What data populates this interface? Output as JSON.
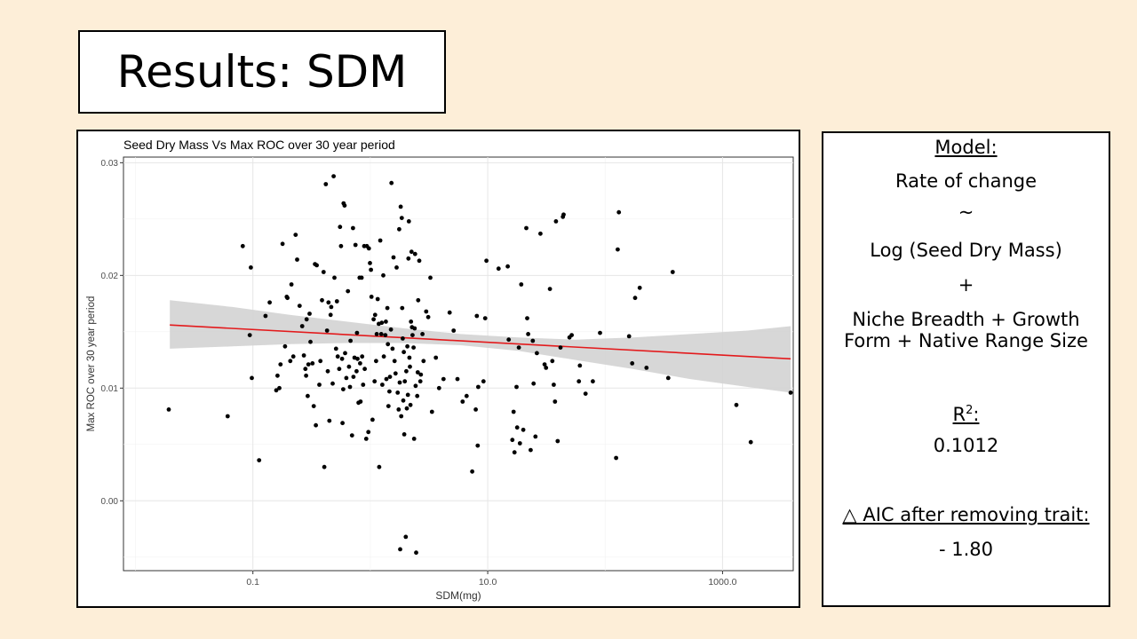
{
  "slide": {
    "title": "Results: SDM",
    "background": "#fdeed8"
  },
  "model_panel": {
    "heading": "Model:",
    "response": "Rate of change",
    "tilde": "~",
    "predictor": "Log (Seed Dry Mass)",
    "plus": "+",
    "covariates_line1": "Niche Breadth + Growth",
    "covariates_line2": "Form + Native Range Size",
    "r2_label": "R",
    "r2_sup": "2",
    "r2_colon": ":",
    "r2_value": "0.1012",
    "aic_label": "△ AIC after removing trait:",
    "aic_value": "- 1.80"
  },
  "chart_data": {
    "type": "scatter",
    "title": "Seed Dry Mass Vs Max ROC over 30 year period",
    "xlabel": "SDM(mg)",
    "ylabel": "Max ROC over 30 year period",
    "x_scale": "log10",
    "xlim": [
      0.0079,
      4000
    ],
    "ylim": [
      -0.0062,
      0.0305
    ],
    "x_ticks": [
      {
        "value": 0.1,
        "label": "0.1"
      },
      {
        "value": 10,
        "label": "10.0"
      },
      {
        "value": 1000,
        "label": "1000.0"
      }
    ],
    "y_ticks": [
      {
        "value": 0.0,
        "label": "0.00"
      },
      {
        "value": 0.01,
        "label": "0.01"
      },
      {
        "value": 0.02,
        "label": "0.02"
      },
      {
        "value": 0.03,
        "label": "0.03"
      }
    ],
    "grid": true,
    "point_color": "#000000",
    "fit_color": "#e31a1c",
    "band_color": "#d3d3d3",
    "fit": {
      "x": [
        0.0196,
        3800
      ],
      "y": [
        0.0156,
        0.0126
      ]
    },
    "band": {
      "x": [
        0.0196,
        0.067,
        0.206,
        0.63,
        1.94,
        5.9,
        18.3,
        56,
        172,
        530,
        1630,
        3800
      ],
      "lower": [
        0.0135,
        0.0137,
        0.0139,
        0.014,
        0.014,
        0.0138,
        0.0133,
        0.0125,
        0.0117,
        0.0108,
        0.0101,
        0.0096
      ],
      "upper": [
        0.0178,
        0.0172,
        0.0165,
        0.0159,
        0.0153,
        0.0148,
        0.0145,
        0.0143,
        0.0145,
        0.0148,
        0.0151,
        0.0155
      ]
    },
    "points": [
      [
        0.0192,
        0.0081
      ],
      [
        0.061,
        0.0075
      ],
      [
        0.082,
        0.0226
      ],
      [
        0.094,
        0.0147
      ],
      [
        0.096,
        0.0207
      ],
      [
        0.098,
        0.0109
      ],
      [
        0.113,
        0.0036
      ],
      [
        0.128,
        0.0164
      ],
      [
        0.139,
        0.0176
      ],
      [
        0.158,
        0.0098
      ],
      [
        0.162,
        0.0111
      ],
      [
        0.168,
        0.01
      ],
      [
        0.172,
        0.0121
      ],
      [
        0.179,
        0.0228
      ],
      [
        0.188,
        0.0137
      ],
      [
        0.194,
        0.0181
      ],
      [
        0.197,
        0.018
      ],
      [
        0.208,
        0.0124
      ],
      [
        0.213,
        0.0192
      ],
      [
        0.221,
        0.0128
      ],
      [
        0.231,
        0.0236
      ],
      [
        0.238,
        0.0214
      ],
      [
        0.25,
        0.0173
      ],
      [
        0.263,
        0.0155
      ],
      [
        0.272,
        0.0129
      ],
      [
        0.28,
        0.0117
      ],
      [
        0.284,
        0.0111
      ],
      [
        0.287,
        0.0161
      ],
      [
        0.293,
        0.0093
      ],
      [
        0.297,
        0.0121
      ],
      [
        0.304,
        0.0166
      ],
      [
        0.309,
        0.0141
      ],
      [
        0.322,
        0.0122
      ],
      [
        0.33,
        0.0084
      ],
      [
        0.338,
        0.021
      ],
      [
        0.344,
        0.0067
      ],
      [
        0.35,
        0.0209
      ],
      [
        0.368,
        0.0103
      ],
      [
        0.376,
        0.0124
      ],
      [
        0.388,
        0.0178
      ],
      [
        0.4,
        0.0203
      ],
      [
        0.406,
        0.003
      ],
      [
        0.418,
        0.0281
      ],
      [
        0.428,
        0.0151
      ],
      [
        0.434,
        0.0115
      ],
      [
        0.44,
        0.0176
      ],
      [
        0.448,
        0.0071
      ],
      [
        0.459,
        0.0165
      ],
      [
        0.465,
        0.0172
      ],
      [
        0.478,
        0.0104
      ],
      [
        0.487,
        0.0288
      ],
      [
        0.495,
        0.0198
      ],
      [
        0.511,
        0.0135
      ],
      [
        0.52,
        0.0177
      ],
      [
        0.528,
        0.0128
      ],
      [
        0.544,
        0.0117
      ],
      [
        0.552,
        0.0243
      ],
      [
        0.563,
        0.0226
      ],
      [
        0.575,
        0.0126
      ],
      [
        0.58,
        0.0069
      ],
      [
        0.588,
        0.0099
      ],
      [
        0.592,
        0.0264
      ],
      [
        0.604,
        0.0262
      ],
      [
        0.61,
        0.0131
      ],
      [
        0.625,
        0.0109
      ],
      [
        0.645,
        0.0186
      ],
      [
        0.658,
        0.0119
      ],
      [
        0.671,
        0.0101
      ],
      [
        0.678,
        0.0142
      ],
      [
        0.699,
        0.0058
      ],
      [
        0.712,
        0.0242
      ],
      [
        0.719,
        0.011
      ],
      [
        0.733,
        0.0127
      ],
      [
        0.748,
        0.0227
      ],
      [
        0.763,
        0.0115
      ],
      [
        0.77,
        0.0149
      ],
      [
        0.778,
        0.0126
      ],
      [
        0.794,
        0.0087
      ],
      [
        0.81,
        0.0198
      ],
      [
        0.818,
        0.0122
      ],
      [
        0.826,
        0.0088
      ],
      [
        0.843,
        0.0198
      ],
      [
        0.852,
        0.0128
      ],
      [
        0.869,
        0.0103
      ],
      [
        0.887,
        0.0226
      ],
      [
        0.896,
        0.0117
      ],
      [
        0.924,
        0.0055
      ],
      [
        0.934,
        0.0226
      ],
      [
        0.963,
        0.0061
      ],
      [
        0.973,
        0.0224
      ],
      [
        0.993,
        0.0211
      ],
      [
        1.013,
        0.0205
      ],
      [
        1.024,
        0.0181
      ],
      [
        1.045,
        0.0072
      ],
      [
        1.066,
        0.0161
      ],
      [
        1.088,
        0.0106
      ],
      [
        1.099,
        0.0165
      ],
      [
        1.121,
        0.0124
      ],
      [
        1.133,
        0.0148
      ],
      [
        1.156,
        0.0179
      ],
      [
        1.18,
        0.0157
      ],
      [
        1.191,
        0.003
      ],
      [
        1.216,
        0.0231
      ],
      [
        1.24,
        0.0148
      ],
      [
        1.252,
        0.0158
      ],
      [
        1.266,
        0.0103
      ],
      [
        1.291,
        0.02
      ],
      [
        1.303,
        0.0128
      ],
      [
        1.343,
        0.0147
      ],
      [
        1.356,
        0.0159
      ],
      [
        1.37,
        0.0108
      ],
      [
        1.397,
        0.0171
      ],
      [
        1.411,
        0.0139
      ],
      [
        1.426,
        0.0084
      ],
      [
        1.455,
        0.0097
      ],
      [
        1.469,
        0.011
      ],
      [
        1.498,
        0.0152
      ],
      [
        1.513,
        0.0282
      ],
      [
        1.545,
        0.0135
      ],
      [
        1.576,
        0.0216
      ],
      [
        1.608,
        0.0124
      ],
      [
        1.641,
        0.0113
      ],
      [
        1.675,
        0.0207
      ],
      [
        1.709,
        0.0096
      ],
      [
        1.744,
        0.0081
      ],
      [
        1.762,
        0.0241
      ],
      [
        1.78,
        0.0105
      ],
      [
        1.796,
        -0.0043
      ],
      [
        1.814,
        0.0261
      ],
      [
        1.834,
        0.0075
      ],
      [
        1.852,
        0.0251
      ],
      [
        1.871,
        0.0171
      ],
      [
        1.89,
        0.0144
      ],
      [
        1.908,
        0.0089
      ],
      [
        1.929,
        0.0132
      ],
      [
        1.946,
        0.0059
      ],
      [
        1.966,
        0.0106
      ],
      [
        2.006,
        -0.0032
      ],
      [
        2.027,
        0.0115
      ],
      [
        2.048,
        0.0082
      ],
      [
        2.068,
        0.0137
      ],
      [
        2.09,
        0.0094
      ],
      [
        2.11,
        0.0215
      ],
      [
        2.132,
        0.0248
      ],
      [
        2.154,
        0.0127
      ],
      [
        2.177,
        0.0119
      ],
      [
        2.198,
        0.0085
      ],
      [
        2.22,
        0.0159
      ],
      [
        2.244,
        0.0221
      ],
      [
        2.266,
        0.0154
      ],
      [
        2.29,
        0.0147
      ],
      [
        2.336,
        0.0136
      ],
      [
        2.359,
        0.0055
      ],
      [
        2.384,
        0.0153
      ],
      [
        2.408,
        0.0219
      ],
      [
        2.433,
        0.0102
      ],
      [
        2.458,
        -0.0046
      ],
      [
        2.508,
        0.0093
      ],
      [
        2.534,
        0.0114
      ],
      [
        2.56,
        0.0178
      ],
      [
        2.613,
        0.0213
      ],
      [
        2.669,
        0.0106
      ],
      [
        2.696,
        0.0112
      ],
      [
        2.782,
        0.0148
      ],
      [
        2.842,
        0.0124
      ],
      [
        2.991,
        0.0168
      ],
      [
        3.117,
        0.0163
      ],
      [
        3.248,
        0.0198
      ],
      [
        3.348,
        0.0079
      ],
      [
        3.62,
        0.0127
      ],
      [
        3.849,
        0.01
      ],
      [
        4.202,
        0.0108
      ],
      [
        4.741,
        0.0167
      ],
      [
        5.13,
        0.0151
      ],
      [
        5.52,
        0.0108
      ],
      [
        6.111,
        0.0088
      ],
      [
        6.61,
        0.0093
      ],
      [
        7.38,
        0.0026
      ],
      [
        7.91,
        0.0081
      ],
      [
        8.08,
        0.0164
      ],
      [
        8.22,
        0.0049
      ],
      [
        8.31,
        0.0101
      ],
      [
        9.21,
        0.0106
      ],
      [
        9.52,
        0.0162
      ],
      [
        9.74,
        0.0213
      ],
      [
        12.38,
        0.0206
      ],
      [
        14.8,
        0.0208
      ],
      [
        15.1,
        0.0143
      ],
      [
        16.2,
        0.0054
      ],
      [
        16.6,
        0.0079
      ],
      [
        16.9,
        0.0043
      ],
      [
        17.6,
        0.0101
      ],
      [
        17.8,
        0.0065
      ],
      [
        18.4,
        0.0136
      ],
      [
        18.8,
        0.0051
      ],
      [
        19.3,
        0.0192
      ],
      [
        20.1,
        0.0063
      ],
      [
        21.3,
        0.0242
      ],
      [
        21.7,
        0.0162
      ],
      [
        22.1,
        0.0148
      ],
      [
        23.2,
        0.0045
      ],
      [
        24.2,
        0.0142
      ],
      [
        24.6,
        0.0104
      ],
      [
        25.5,
        0.0057
      ],
      [
        26.2,
        0.0131
      ],
      [
        28.1,
        0.0237
      ],
      [
        30.5,
        0.0121
      ],
      [
        31.4,
        0.0118
      ],
      [
        33.9,
        0.0188
      ],
      [
        35.5,
        0.0124
      ],
      [
        36.5,
        0.0103
      ],
      [
        37.4,
        0.0088
      ],
      [
        38.1,
        0.0248
      ],
      [
        39.4,
        0.0053
      ],
      [
        41.7,
        0.0136
      ],
      [
        43.7,
        0.0252
      ],
      [
        44.3,
        0.0254
      ],
      [
        49.7,
        0.0145
      ],
      [
        51.9,
        0.0147
      ],
      [
        59.8,
        0.0106
      ],
      [
        60.9,
        0.012
      ],
      [
        68.1,
        0.0095
      ],
      [
        78.6,
        0.0106
      ],
      [
        90.5,
        0.0149
      ],
      [
        124,
        0.0038
      ],
      [
        128,
        0.0223
      ],
      [
        131,
        0.0256
      ],
      [
        160,
        0.0146
      ],
      [
        170,
        0.0122
      ],
      [
        180,
        0.018
      ],
      [
        197,
        0.0189
      ],
      [
        225,
        0.0118
      ],
      [
        345,
        0.0109
      ],
      [
        376,
        0.0203
      ],
      [
        1312,
        0.0085
      ],
      [
        1738,
        0.0052
      ],
      [
        3800,
        0.0096
      ]
    ]
  }
}
